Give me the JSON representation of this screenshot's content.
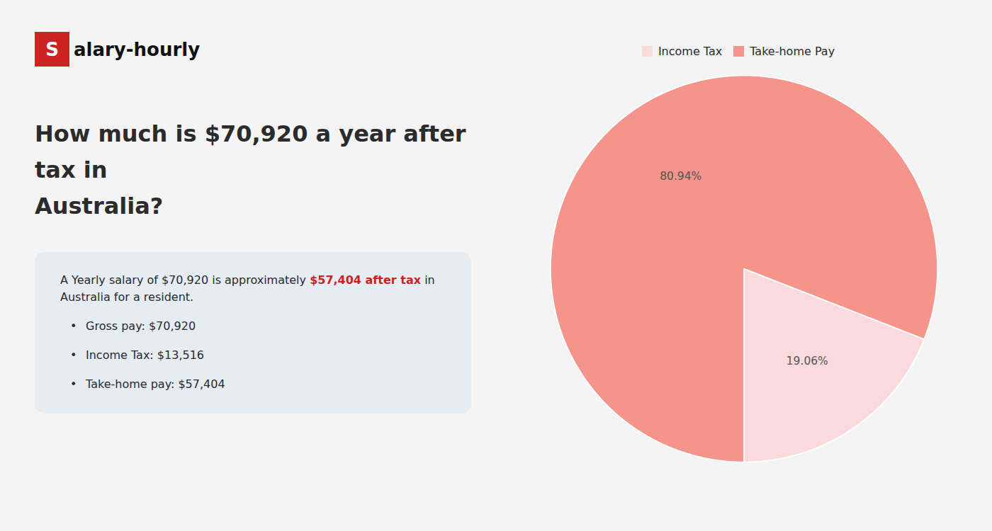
{
  "chart_data": {
    "type": "pie",
    "title": [
      "How much is $70,920 a year after tax in",
      "Australia?"
    ],
    "annotations": [
      [
        {
          "text": "S",
          "color": "#cc2222"
        },
        {
          "text": "alary-hourly"
        }
      ],
      [
        {
          "text": "A Yearly salary of $70,920 is approximately "
        },
        {
          "text": "$57,404 after tax",
          "color": "#cc2222"
        },
        {
          "text": " in"
        }
      ],
      [
        {
          "text": "Australia for a resident."
        }
      ],
      [
        {
          "text": "•"
        },
        {
          "text": "Gross pay: $70,920"
        }
      ],
      [
        {
          "text": "•"
        },
        {
          "text": "Income Tax: $13,516"
        }
      ],
      [
        {
          "text": "•"
        },
        {
          "text": "Take-home pay: $57,404"
        }
      ]
    ],
    "categories": [
      "Income Tax",
      "Take-home Pay"
    ],
    "values": [
      19.06,
      80.94
    ],
    "value_labels": [
      "19.06%",
      "80.94%"
    ],
    "colors": [
      "#fadadd",
      "#f4948a"
    ],
    "data_labels": true,
    "legend": "top"
  }
}
